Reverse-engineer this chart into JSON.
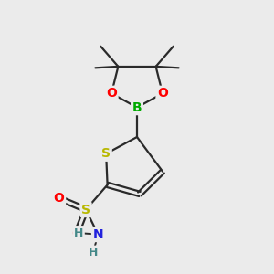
{
  "bg_color": "#ebebeb",
  "bond_color": "#2a2a2a",
  "bond_width": 1.6,
  "atom_colors": {
    "S_thiophene": "#b8b800",
    "S_sulfonamide": "#b8b800",
    "O": "#ff0000",
    "B": "#00aa00",
    "N": "#2222dd",
    "H": "#448888",
    "C": "#2a2a2a"
  },
  "font_size_atoms": 10,
  "font_size_H": 9
}
